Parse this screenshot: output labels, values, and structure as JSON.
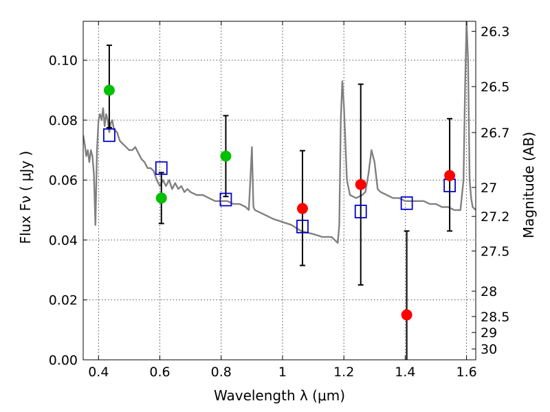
{
  "chart_data": {
    "type": "scatter",
    "title": "",
    "xlabel": "Wavelength  λ (μm)",
    "ylabel": "Flux  Fν  ( μJy )",
    "y2label": "Magnitude (AB)",
    "xlim": [
      0.35,
      1.63
    ],
    "ylim": [
      0.0,
      0.113
    ],
    "grid": true,
    "x_ticks": [
      {
        "value": 0.4,
        "label": "0.4"
      },
      {
        "value": 0.6,
        "label": "0.6"
      },
      {
        "value": 0.8,
        "label": "0.8"
      },
      {
        "value": 1.0,
        "label": "1"
      },
      {
        "value": 1.2,
        "label": "1.2"
      },
      {
        "value": 1.4,
        "label": "1.4"
      },
      {
        "value": 1.6,
        "label": "1.6"
      }
    ],
    "y_ticks": [
      {
        "value": 0.0,
        "label": "0.00"
      },
      {
        "value": 0.02,
        "label": "0.02"
      },
      {
        "value": 0.04,
        "label": "0.04"
      },
      {
        "value": 0.06,
        "label": "0.06"
      },
      {
        "value": 0.08,
        "label": "0.08"
      },
      {
        "value": 0.1,
        "label": "0.10"
      }
    ],
    "y2_ticks": [
      {
        "mag": 26.3,
        "label": "26.3"
      },
      {
        "mag": 26.5,
        "label": "26.5"
      },
      {
        "mag": 26.7,
        "label": "26.7"
      },
      {
        "mag": 27,
        "label": "27"
      },
      {
        "mag": 27.2,
        "label": "27.2"
      },
      {
        "mag": 27.5,
        "label": "27.5"
      },
      {
        "mag": 28,
        "label": "28"
      },
      {
        "mag": 28.5,
        "label": "28.5"
      },
      {
        "mag": 29,
        "label": "29"
      },
      {
        "mag": 30,
        "label": "30"
      }
    ],
    "colors": {
      "model": "#808080",
      "green": "#00c000",
      "red": "#ff0000",
      "square": "#0000cc",
      "errorbar": "#000000"
    },
    "series": [
      {
        "marker": "line",
        "x": [
          0.35,
          0.355,
          0.36,
          0.365,
          0.37,
          0.375,
          0.38,
          0.385,
          0.39,
          0.395,
          0.4,
          0.405,
          0.41,
          0.415,
          0.42,
          0.425,
          0.43,
          0.435,
          0.44,
          0.445,
          0.45,
          0.46,
          0.47,
          0.48,
          0.49,
          0.5,
          0.51,
          0.52,
          0.53,
          0.54,
          0.55,
          0.56,
          0.57,
          0.58,
          0.59,
          0.6,
          0.61,
          0.62,
          0.63,
          0.64,
          0.65,
          0.66,
          0.67,
          0.68,
          0.69,
          0.7,
          0.72,
          0.74,
          0.76,
          0.78,
          0.8,
          0.82,
          0.84,
          0.86,
          0.88,
          0.89,
          0.895,
          0.9,
          0.905,
          0.91,
          0.93,
          0.95,
          0.97,
          1.0,
          1.03,
          1.06,
          1.1,
          1.13,
          1.16,
          1.18,
          1.185,
          1.19,
          1.195,
          1.2,
          1.21,
          1.22,
          1.24,
          1.26,
          1.27,
          1.28,
          1.29,
          1.3,
          1.31,
          1.32,
          1.34,
          1.36,
          1.38,
          1.4,
          1.42,
          1.44,
          1.46,
          1.48,
          1.5,
          1.52,
          1.54,
          1.56,
          1.58,
          1.59,
          1.595,
          1.6,
          1.605,
          1.61,
          1.615,
          1.62,
          1.63
        ],
        "y": [
          0.075,
          0.072,
          0.068,
          0.07,
          0.066,
          0.07,
          0.068,
          0.062,
          0.045,
          0.07,
          0.08,
          0.082,
          0.08,
          0.084,
          0.078,
          0.082,
          0.08,
          0.076,
          0.079,
          0.08,
          0.077,
          0.076,
          0.073,
          0.072,
          0.071,
          0.07,
          0.07,
          0.071,
          0.069,
          0.067,
          0.066,
          0.064,
          0.064,
          0.063,
          0.06,
          0.058,
          0.06,
          0.058,
          0.06,
          0.057,
          0.059,
          0.057,
          0.058,
          0.056,
          0.057,
          0.056,
          0.055,
          0.055,
          0.054,
          0.053,
          0.053,
          0.053,
          0.052,
          0.052,
          0.051,
          0.05,
          0.06,
          0.071,
          0.051,
          0.05,
          0.049,
          0.048,
          0.047,
          0.046,
          0.045,
          0.043,
          0.042,
          0.041,
          0.041,
          0.039,
          0.045,
          0.08,
          0.093,
          0.085,
          0.06,
          0.055,
          0.054,
          0.055,
          0.056,
          0.062,
          0.07,
          0.066,
          0.057,
          0.056,
          0.055,
          0.054,
          0.054,
          0.053,
          0.053,
          0.053,
          0.053,
          0.052,
          0.052,
          0.051,
          0.051,
          0.05,
          0.05,
          0.06,
          0.09,
          0.113,
          0.1,
          0.06,
          0.054,
          0.051,
          0.05
        ]
      },
      {
        "marker": "circle",
        "color": "green",
        "x": [
          0.435,
          0.605,
          0.815
        ],
        "y": [
          0.09,
          0.054,
          0.068
        ]
      },
      {
        "marker": "circle",
        "color": "red",
        "x": [
          1.065,
          1.255,
          1.405,
          1.545
        ],
        "y": [
          0.0505,
          0.0585,
          0.015,
          0.0615
        ]
      },
      {
        "marker": "square",
        "color": "square",
        "x": [
          0.435,
          0.605,
          0.815,
          1.065,
          1.255,
          1.405,
          1.545
        ],
        "y": [
          0.075,
          0.064,
          0.0535,
          0.0445,
          0.0495,
          0.0523,
          0.0582
        ]
      },
      {
        "marker": "errorbar",
        "x": [
          0.435,
          0.605,
          0.815,
          1.065,
          1.255,
          1.405,
          1.545
        ],
        "low": [
          0.0775,
          0.0455,
          0.0545,
          0.0315,
          0.025,
          0.0,
          0.043
        ],
        "high": [
          0.105,
          0.0625,
          0.0815,
          0.0698,
          0.092,
          0.043,
          0.0805
        ]
      }
    ]
  }
}
